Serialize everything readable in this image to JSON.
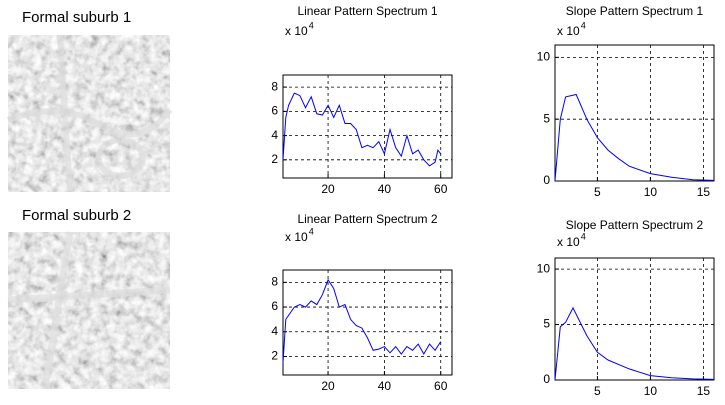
{
  "images": [
    {
      "label": "Formal suburb 1"
    },
    {
      "label": "Formal suburb 2"
    }
  ],
  "chart_data": [
    {
      "type": "line",
      "title": "Linear Pattern Spectrum 1",
      "y_scale_label": "x 10",
      "y_scale_exponent": "4",
      "x": [
        4,
        5,
        6,
        8,
        10,
        12,
        14,
        16,
        18,
        20,
        22,
        24,
        26,
        28,
        30,
        32,
        34,
        36,
        38,
        40,
        42,
        44,
        46,
        48,
        50,
        52,
        54,
        56,
        58,
        59,
        60
      ],
      "values": [
        2,
        5.5,
        6.5,
        7.5,
        7.3,
        6.3,
        7.2,
        5.8,
        5.7,
        6.5,
        5.5,
        6.5,
        5,
        5,
        4.5,
        3,
        3.2,
        3,
        3.5,
        2.5,
        4.5,
        3,
        2.3,
        4,
        2.5,
        2.8,
        2,
        1.5,
        1.8,
        2.8,
        2.5
      ],
      "color": "#0000ff",
      "xlim": [
        4,
        64
      ],
      "ylim": [
        0.5,
        9
      ],
      "xticks": [
        20,
        40,
        60
      ],
      "yticks": [
        2,
        4,
        6,
        8
      ],
      "grid": true
    },
    {
      "type": "line",
      "title": "Slope Pattern Spectrum 1",
      "y_scale_label": "x 10",
      "y_scale_exponent": "4",
      "x": [
        1,
        1.5,
        2,
        3,
        4,
        5,
        6,
        7,
        8,
        10,
        12,
        14,
        16
      ],
      "values": [
        0,
        5,
        6.8,
        7,
        5,
        3.5,
        2.5,
        1.8,
        1.2,
        0.6,
        0.3,
        0.1,
        0.05
      ],
      "color": "#0000ff",
      "xlim": [
        1,
        16
      ],
      "ylim": [
        0,
        11
      ],
      "xticks": [
        5,
        10,
        15
      ],
      "yticks": [
        0,
        5,
        10
      ],
      "grid": true
    },
    {
      "type": "line",
      "title": "Linear Pattern Spectrum 2",
      "y_scale_label": "x 10",
      "y_scale_exponent": "4",
      "x": [
        4,
        5,
        8,
        10,
        12,
        14,
        16,
        18,
        20,
        22,
        24,
        26,
        28,
        30,
        32,
        34,
        36,
        38,
        40,
        42,
        44,
        46,
        48,
        50,
        52,
        54,
        56,
        58,
        60
      ],
      "values": [
        1.5,
        5,
        6,
        6.2,
        6,
        6.5,
        6.2,
        7,
        8.2,
        7.5,
        6,
        6.2,
        5,
        4.5,
        4.3,
        3.5,
        2.5,
        2.6,
        2.8,
        2.3,
        2.8,
        2.2,
        2.8,
        2.5,
        3,
        2.2,
        3,
        2.5,
        3.2
      ],
      "color": "#0000ff",
      "xlim": [
        4,
        64
      ],
      "ylim": [
        0.5,
        9
      ],
      "xticks": [
        20,
        40,
        60
      ],
      "yticks": [
        2,
        4,
        6,
        8
      ],
      "grid": true
    },
    {
      "type": "line",
      "title": "Slope Pattern Spectrum 2",
      "y_scale_label": "x 10",
      "y_scale_exponent": "4",
      "x": [
        1,
        1.5,
        2,
        2.7,
        4,
        5,
        6,
        8,
        10,
        12,
        14,
        16
      ],
      "values": [
        0,
        4.8,
        5.2,
        6.5,
        4,
        2.5,
        1.8,
        1,
        0.4,
        0.2,
        0.1,
        0.05
      ],
      "color": "#0000ff",
      "xlim": [
        1,
        16
      ],
      "ylim": [
        0,
        11
      ],
      "xticks": [
        5,
        10,
        15
      ],
      "yticks": [
        0,
        5,
        10
      ],
      "grid": true
    }
  ]
}
